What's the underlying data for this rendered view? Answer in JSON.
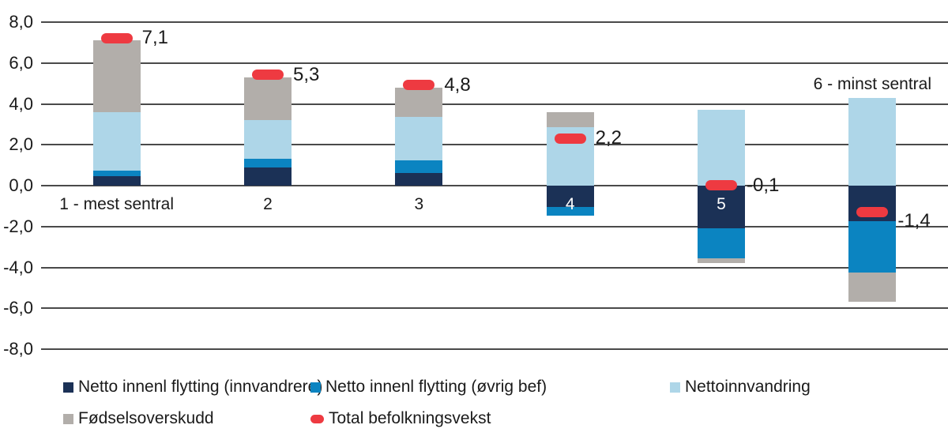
{
  "chart_data": {
    "type": "bar",
    "subtype": "stacked-column-with-total-markers",
    "title": "",
    "xlabel": "",
    "ylabel": "",
    "ylim": [
      -8,
      8
    ],
    "grid": true,
    "legend_position": "bottom",
    "decimal_style": "comma",
    "categories": [
      "1 - mest sentral",
      "2",
      "3",
      "4",
      "5",
      "6 - minst sentral"
    ],
    "y_ticks": [
      "8,0",
      "6,0",
      "4,0",
      "2,0",
      "0,0",
      "-2,0",
      "-4,0",
      "-6,0",
      "-8,0"
    ],
    "y_tick_values": [
      8,
      6,
      4,
      2,
      0,
      -2,
      -4,
      -6,
      -8
    ],
    "series": [
      {
        "name": "Netto innenl flytting (innvandrere)",
        "kind": "stacked-bar",
        "color": "#1b3156",
        "values": [
          0.45,
          0.9,
          0.6,
          -1.05,
          -2.1,
          -1.75
        ]
      },
      {
        "name": "Netto innenl flytting (øvrig bef)",
        "kind": "stacked-bar",
        "color": "#0b84c1",
        "values": [
          0.3,
          0.4,
          0.65,
          -0.4,
          -1.45,
          -2.5
        ]
      },
      {
        "name": "Nettoinnvandring",
        "kind": "stacked-bar",
        "color": "#aed6e8",
        "values": [
          2.85,
          1.9,
          2.1,
          2.85,
          3.7,
          4.3
        ]
      },
      {
        "name": "Fødselsoverskudd",
        "kind": "stacked-bar",
        "color": "#b2aeaa",
        "values": [
          3.5,
          2.1,
          1.45,
          0.75,
          -0.25,
          -1.45
        ]
      },
      {
        "name": "Total befolkningsvekst",
        "kind": "marker",
        "color": "#ee3a41",
        "values": [
          7.1,
          5.3,
          4.8,
          2.2,
          -0.1,
          -1.4
        ]
      }
    ],
    "total_labels": [
      "7,1",
      "5,3",
      "4,8",
      "2,2",
      "-0,1",
      "-1,4"
    ],
    "colors": {
      "text": "#1a1a1a",
      "gridline": "#4a4a4a",
      "inside_bar_label": "#ffffff",
      "background": "#ffffff"
    }
  }
}
